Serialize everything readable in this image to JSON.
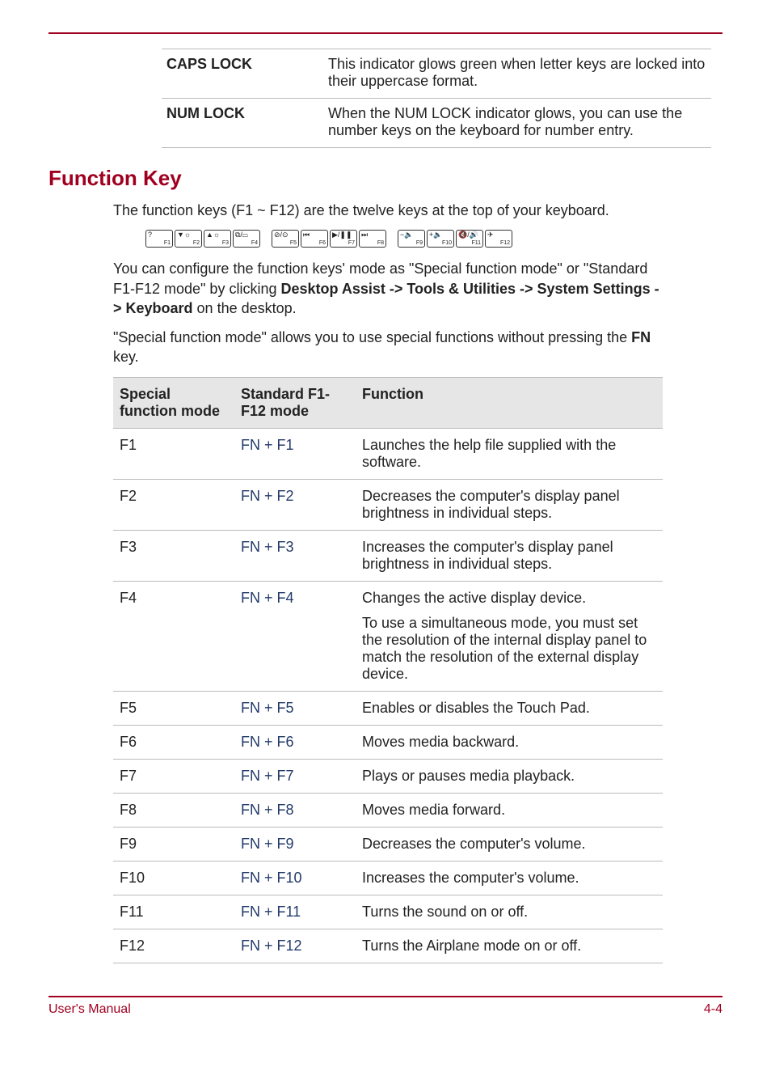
{
  "colors": {
    "accent": "#a00020",
    "rule": "#bbbbbb",
    "th_bg": "#e6e6e6",
    "std_col": "#223a6a"
  },
  "indicators": [
    {
      "label": "CAPS LOCK",
      "desc": "This indicator glows green when letter keys are locked into their uppercase format."
    },
    {
      "label": "NUM LOCK",
      "desc": "When the NUM LOCK indicator glows, you can use the number keys on the keyboard for number entry."
    }
  ],
  "section_title": "Function Key",
  "intro": "The function keys (F1 ~ F12) are the twelve keys at the top of your keyboard.",
  "fn_keys": [
    [
      {
        "icon": "?",
        "fn": "F1"
      },
      {
        "icon": "▼☼",
        "fn": "F2"
      },
      {
        "icon": "▲☼",
        "fn": "F3"
      },
      {
        "icon": "⧉/▭",
        "fn": "F4"
      }
    ],
    [
      {
        "icon": "⊘/⊙",
        "fn": "F5"
      },
      {
        "icon": "⏮",
        "fn": "F6"
      },
      {
        "icon": "▶/❚❚",
        "fn": "F7"
      },
      {
        "icon": "⏭",
        "fn": "F8"
      }
    ],
    [
      {
        "icon": "−🔈",
        "fn": "F9"
      },
      {
        "icon": "+🔈",
        "fn": "F10"
      },
      {
        "icon": "🔇/🔊",
        "fn": "F11"
      },
      {
        "icon": "✈",
        "fn": "F12"
      }
    ]
  ],
  "config_pre": "You can configure the function keys' mode as \"Special function mode\" or \"Standard F1-F12 mode\" by clicking ",
  "config_bold": "Desktop Assist -> Tools & Utilities -> System Settings -> Keyboard",
  "config_post": " on the desktop.",
  "special_pre": "\"Special function mode\" allows you to use special functions without pressing the ",
  "special_bold": "FN",
  "special_post": " key.",
  "table": {
    "headers": [
      "Special function mode",
      "Standard F1-F12 mode",
      "Function"
    ],
    "rows": [
      {
        "a": "F1",
        "b": "FN + F1",
        "c": "Launches the help file supplied with the software."
      },
      {
        "a": "F2",
        "b": "FN + F2",
        "c": "Decreases the computer's display panel brightness in individual steps."
      },
      {
        "a": "F3",
        "b": "FN + F3",
        "c": "Increases the computer's display panel brightness in individual steps."
      },
      {
        "a": "F4",
        "b": "FN + F4",
        "c": "Changes the active display device.",
        "c2": "To use a simultaneous mode, you must set the resolution of the internal display panel to match the resolution of the external display device."
      },
      {
        "a": "F5",
        "b": "FN + F5",
        "c": "Enables or disables the Touch Pad."
      },
      {
        "a": "F6",
        "b": "FN + F6",
        "c": "Moves media backward."
      },
      {
        "a": "F7",
        "b": "FN + F7",
        "c": "Plays or pauses media playback."
      },
      {
        "a": "F8",
        "b": "FN + F8",
        "c": "Moves media forward."
      },
      {
        "a": "F9",
        "b": "FN + F9",
        "c": "Decreases the computer's volume."
      },
      {
        "a": "F10",
        "b": "FN + F10",
        "c": "Increases the computer's volume."
      },
      {
        "a": "F11",
        "b": "FN + F11",
        "c": "Turns the sound on or off."
      },
      {
        "a": "F12",
        "b": "FN + F12",
        "c": "Turns the Airplane mode on or off."
      }
    ]
  },
  "footer": {
    "left": "User's Manual",
    "right": "4-4"
  }
}
